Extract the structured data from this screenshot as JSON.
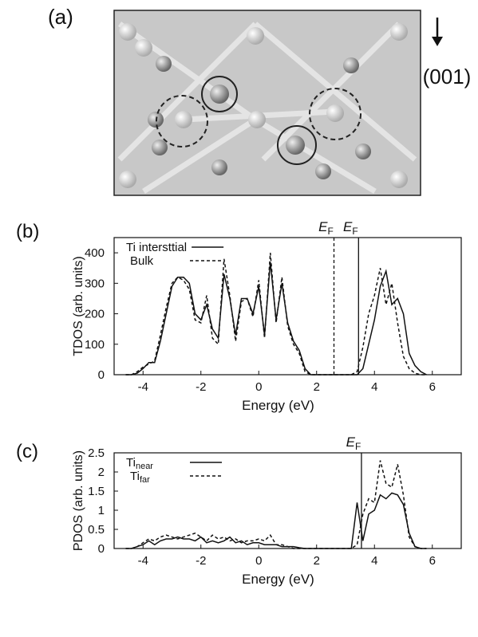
{
  "figure_a": {
    "panel_label": "(a)",
    "direction": "(001)"
  },
  "chart_data": [
    {
      "type": "line",
      "panel_label": "(b)",
      "y_label": "TDOS (arb. units)",
      "x_label": "Energy (eV)",
      "xlim": [
        -5,
        7
      ],
      "ylim": [
        0,
        450
      ],
      "xticks": [
        -4,
        -2,
        0,
        2,
        4,
        6
      ],
      "yticks": [
        0,
        100,
        200,
        300,
        400
      ],
      "legend": "upper left",
      "vlines": [
        {
          "x": 2.6,
          "style": "dashed",
          "label": "E",
          "label_sub": "F"
        },
        {
          "x": 3.45,
          "style": "solid",
          "label": "E",
          "label_sub": "F"
        }
      ],
      "x": [
        -4.6,
        -4.4,
        -4.2,
        -4.0,
        -3.8,
        -3.6,
        -3.4,
        -3.2,
        -3.0,
        -2.8,
        -2.6,
        -2.4,
        -2.2,
        -2.0,
        -1.8,
        -1.6,
        -1.4,
        -1.2,
        -1.0,
        -0.8,
        -0.6,
        -0.4,
        -0.2,
        0,
        0.2,
        0.4,
        0.6,
        0.8,
        1.0,
        1.2,
        1.4,
        1.6,
        1.8,
        2.0,
        2.2,
        2.4,
        2.6,
        2.8,
        3.0,
        3.2,
        3.4,
        3.6,
        3.8,
        4.0,
        4.2,
        4.4,
        4.6,
        4.8,
        5.0,
        5.2,
        5.4,
        5.6,
        5.8
      ],
      "series": [
        {
          "name": "Ti intersttial",
          "color": "#111111",
          "style": "solid",
          "values": [
            0,
            0,
            5,
            20,
            40,
            40,
            110,
            200,
            290,
            320,
            320,
            300,
            200,
            180,
            230,
            150,
            120,
            330,
            250,
            130,
            250,
            250,
            200,
            290,
            130,
            370,
            180,
            300,
            170,
            110,
            80,
            20,
            0,
            0,
            0,
            0,
            0,
            0,
            0,
            0,
            0,
            20,
            100,
            180,
            290,
            340,
            230,
            250,
            200,
            70,
            30,
            10,
            0
          ]
        },
        {
          "name": "Bulk",
          "color": "#111111",
          "style": "dashed",
          "values": [
            0,
            0,
            10,
            25,
            35,
            45,
            130,
            220,
            300,
            320,
            310,
            280,
            180,
            170,
            260,
            120,
            100,
            380,
            260,
            110,
            240,
            250,
            190,
            310,
            120,
            400,
            170,
            320,
            160,
            100,
            70,
            10,
            0,
            0,
            0,
            0,
            0,
            0,
            0,
            0,
            10,
            90,
            200,
            260,
            350,
            230,
            300,
            170,
            60,
            20,
            5,
            0,
            0
          ]
        }
      ]
    },
    {
      "type": "line",
      "panel_label": "(c)",
      "y_label": "PDOS (arb. units)",
      "x_label": "Energy (eV)",
      "xlim": [
        -5,
        7
      ],
      "ylim": [
        0,
        2.5
      ],
      "xticks": [
        -4,
        -2,
        0,
        2,
        4,
        6
      ],
      "yticks": [
        0,
        0.5,
        1,
        1.5,
        2,
        2.5
      ],
      "legend": "upper left",
      "vlines": [
        {
          "x": 3.55,
          "style": "solid",
          "label": "E",
          "label_sub": "F"
        }
      ],
      "x": [
        -4.6,
        -4.4,
        -4.2,
        -4.0,
        -3.8,
        -3.6,
        -3.4,
        -3.2,
        -3.0,
        -2.8,
        -2.6,
        -2.4,
        -2.2,
        -2.0,
        -1.8,
        -1.6,
        -1.4,
        -1.2,
        -1.0,
        -0.8,
        -0.6,
        -0.4,
        -0.2,
        0,
        0.2,
        0.4,
        0.6,
        0.8,
        1.0,
        1.2,
        1.4,
        1.6,
        1.8,
        2.0,
        2.2,
        2.4,
        2.6,
        2.8,
        3.0,
        3.2,
        3.4,
        3.6,
        3.8,
        4.0,
        4.2,
        4.4,
        4.6,
        4.8,
        5.0,
        5.2,
        5.4,
        5.6,
        5.8
      ],
      "series": [
        {
          "name": "Ti",
          "name_sub": "near",
          "color": "#111111",
          "style": "solid",
          "values": [
            0,
            0,
            0.05,
            0.1,
            0.2,
            0.1,
            0.2,
            0.25,
            0.25,
            0.3,
            0.25,
            0.25,
            0.2,
            0.3,
            0.15,
            0.2,
            0.15,
            0.2,
            0.3,
            0.15,
            0.2,
            0.1,
            0.15,
            0.15,
            0.1,
            0.1,
            0.1,
            0.05,
            0.05,
            0.05,
            0.02,
            0,
            0,
            0,
            0,
            0,
            0,
            0,
            0,
            0,
            1.2,
            0.2,
            0.9,
            1.0,
            1.4,
            1.3,
            1.45,
            1.4,
            1.15,
            0.4,
            0.05,
            0,
            0
          ]
        },
        {
          "name": "Ti",
          "name_sub": "far",
          "color": "#111111",
          "style": "dashed",
          "values": [
            0,
            0,
            0.05,
            0.15,
            0.25,
            0.2,
            0.3,
            0.35,
            0.3,
            0.25,
            0.3,
            0.35,
            0.4,
            0.3,
            0.2,
            0.35,
            0.25,
            0.3,
            0.2,
            0.25,
            0.15,
            0.2,
            0.2,
            0.25,
            0.2,
            0.35,
            0.1,
            0.1,
            0.05,
            0,
            0,
            0,
            0,
            0,
            0,
            0,
            0,
            0,
            0,
            0,
            0.1,
            0.9,
            1.3,
            1.2,
            2.3,
            1.7,
            1.6,
            2.2,
            1.4,
            0.3,
            0.05,
            0,
            0
          ]
        }
      ]
    }
  ]
}
